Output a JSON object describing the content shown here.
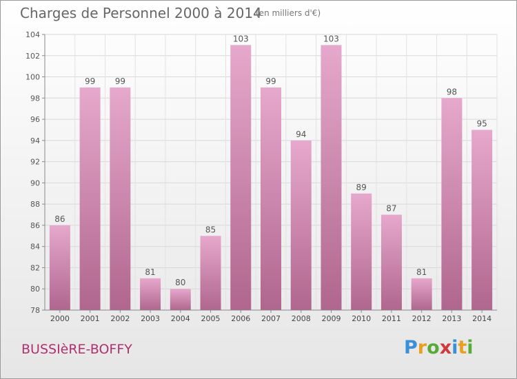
{
  "header": {
    "title": "Charges de Personnel 2000 à 2014",
    "subtitle": "(en milliers d'€)"
  },
  "footer": {
    "place": "BUSSIèRE-BOFFY",
    "logo": "Proxiti",
    "logo_letters": [
      {
        "ch": "P",
        "color": "#3a8fd6"
      },
      {
        "ch": "r",
        "color": "#e8a020"
      },
      {
        "ch": "o",
        "color": "#5aaa3a"
      },
      {
        "ch": "x",
        "color": "#d03a3a"
      },
      {
        "ch": "i",
        "color": "#3a8fd6"
      },
      {
        "ch": "t",
        "color": "#e8a020"
      },
      {
        "ch": "i",
        "color": "#5aaa3a"
      }
    ]
  },
  "chart_data": {
    "type": "bar",
    "categories": [
      "2000",
      "2001",
      "2002",
      "2003",
      "2004",
      "2005",
      "2006",
      "2007",
      "2008",
      "2009",
      "2010",
      "2011",
      "2012",
      "2013",
      "2014"
    ],
    "values": [
      86,
      99,
      99,
      81,
      80,
      85,
      103,
      99,
      94,
      103,
      89,
      87,
      81,
      98,
      95
    ],
    "ylim": [
      78,
      104
    ],
    "yticks": [
      78,
      80,
      82,
      84,
      86,
      88,
      90,
      92,
      94,
      96,
      98,
      100,
      102,
      104
    ],
    "grid": true,
    "bar_color_top": "#e6a8cc",
    "bar_color_bottom": "#b0668e",
    "title": "Charges de Personnel 2000 à 2014",
    "subtitle": "(en milliers d'€)"
  }
}
